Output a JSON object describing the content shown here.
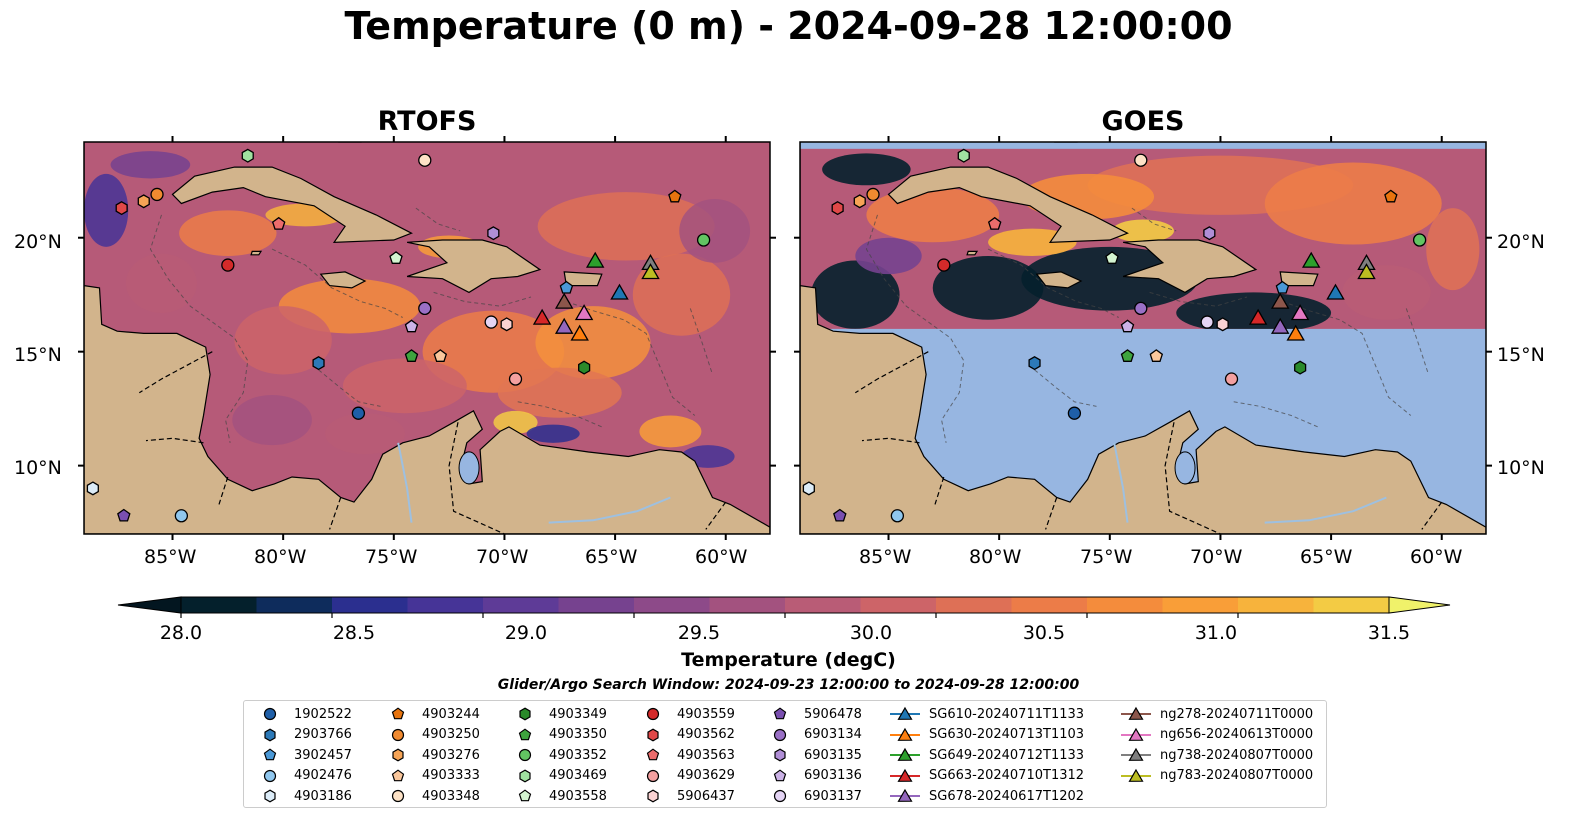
{
  "title": "Temperature (0 m) - 2024-09-28 12:00:00",
  "panels": [
    {
      "title": "RTOFS"
    },
    {
      "title": "GOES"
    }
  ],
  "axes": {
    "lat_labels": [
      "20°N",
      "15°N",
      "10°N"
    ],
    "lon_labels": [
      "85°W",
      "80°W",
      "75°W",
      "70°W",
      "65°W",
      "60°W"
    ]
  },
  "colorbar": {
    "label": "Temperature (degC)",
    "ticks": [
      "28.0",
      "28.5",
      "29.0",
      "29.5",
      "30.0",
      "30.5",
      "31.0",
      "31.5"
    ],
    "colors": [
      "#04202c",
      "#0e2c5c",
      "#2b2f8f",
      "#463497",
      "#5e3b97",
      "#76428f",
      "#8d4a89",
      "#a3527f",
      "#b95c76",
      "#cd6468",
      "#de7056",
      "#ec7c48",
      "#f48c3c",
      "#f99e38",
      "#f7b33c",
      "#f3cb44"
    ],
    "over_color": "#f0f26a",
    "under_color": "#031620"
  },
  "search_window": "Glider/Argo Search Window: 2024-09-23 12:00:00 to 2024-09-28 12:00:00",
  "legend": [
    {
      "label": "1902522",
      "marker": "circle",
      "color": "#1f5fa8"
    },
    {
      "label": "2903766",
      "marker": "hexagon",
      "color": "#2c79b8"
    },
    {
      "label": "3902457",
      "marker": "pentagon",
      "color": "#4a98d6"
    },
    {
      "label": "4902476",
      "marker": "circle",
      "color": "#90c7ee"
    },
    {
      "label": "4903186",
      "marker": "hexagon",
      "color": "#dcecf8"
    },
    {
      "label": "4903244",
      "marker": "pentagon",
      "color": "#e8740e"
    },
    {
      "label": "4903250",
      "marker": "circle",
      "color": "#f08a30"
    },
    {
      "label": "4903276",
      "marker": "hexagon",
      "color": "#f6a456"
    },
    {
      "label": "4903333",
      "marker": "pentagon",
      "color": "#fac79c"
    },
    {
      "label": "4903348",
      "marker": "circle",
      "color": "#fde2c6"
    },
    {
      "label": "4903349",
      "marker": "hexagon",
      "color": "#2a8a2a"
    },
    {
      "label": "4903350",
      "marker": "pentagon",
      "color": "#3ea43e"
    },
    {
      "label": "4903352",
      "marker": "circle",
      "color": "#62c462"
    },
    {
      "label": "4903469",
      "marker": "hexagon",
      "color": "#a0e2a0"
    },
    {
      "label": "4903558",
      "marker": "pentagon",
      "color": "#d4f4d0"
    },
    {
      "label": "4903559",
      "marker": "circle",
      "color": "#d42a2a"
    },
    {
      "label": "4903562",
      "marker": "hexagon",
      "color": "#e04848"
    },
    {
      "label": "4903563",
      "marker": "pentagon",
      "color": "#ec6c6c"
    },
    {
      "label": "4903629",
      "marker": "circle",
      "color": "#f4a0a0"
    },
    {
      "label": "5906437",
      "marker": "hexagon",
      "color": "#fad2d2"
    },
    {
      "label": "5906478",
      "marker": "pentagon",
      "color": "#7a4fb0"
    },
    {
      "label": "6903134",
      "marker": "circle",
      "color": "#9a70c6"
    },
    {
      "label": "6903135",
      "marker": "hexagon",
      "color": "#b08ed6"
    },
    {
      "label": "6903136",
      "marker": "pentagon",
      "color": "#cbb2e6"
    },
    {
      "label": "6903137",
      "marker": "circle",
      "color": "#e4d4f4"
    },
    {
      "label": "SG610-20240711T1133",
      "marker": "triangle",
      "color": "#1f77b4"
    },
    {
      "label": "SG630-20240713T1103",
      "marker": "triangle",
      "color": "#ff7f0e"
    },
    {
      "label": "SG649-20240712T1133",
      "marker": "triangle",
      "color": "#2ca02c"
    },
    {
      "label": "SG663-20240710T1312",
      "marker": "triangle",
      "color": "#d62728"
    },
    {
      "label": "SG678-20240617T1202",
      "marker": "triangle",
      "color": "#9467bd"
    },
    {
      "label": "ng278-20240711T0000",
      "marker": "triangle",
      "color": "#8c564b"
    },
    {
      "label": "ng656-20240613T0000",
      "marker": "triangle",
      "color": "#e377c2"
    },
    {
      "label": "ng738-20240807T0000",
      "marker": "triangle",
      "color": "#7f7f7f"
    },
    {
      "label": "ng783-20240807T0000",
      "marker": "triangle",
      "color": "#bcbd22"
    }
  ],
  "colors": {
    "land": "#d2b48c",
    "missing": "#97b6e1",
    "rivers": "#9ec0e0",
    "ocean_base": "#b65a78",
    "warm": "#ec7c48"
  }
}
